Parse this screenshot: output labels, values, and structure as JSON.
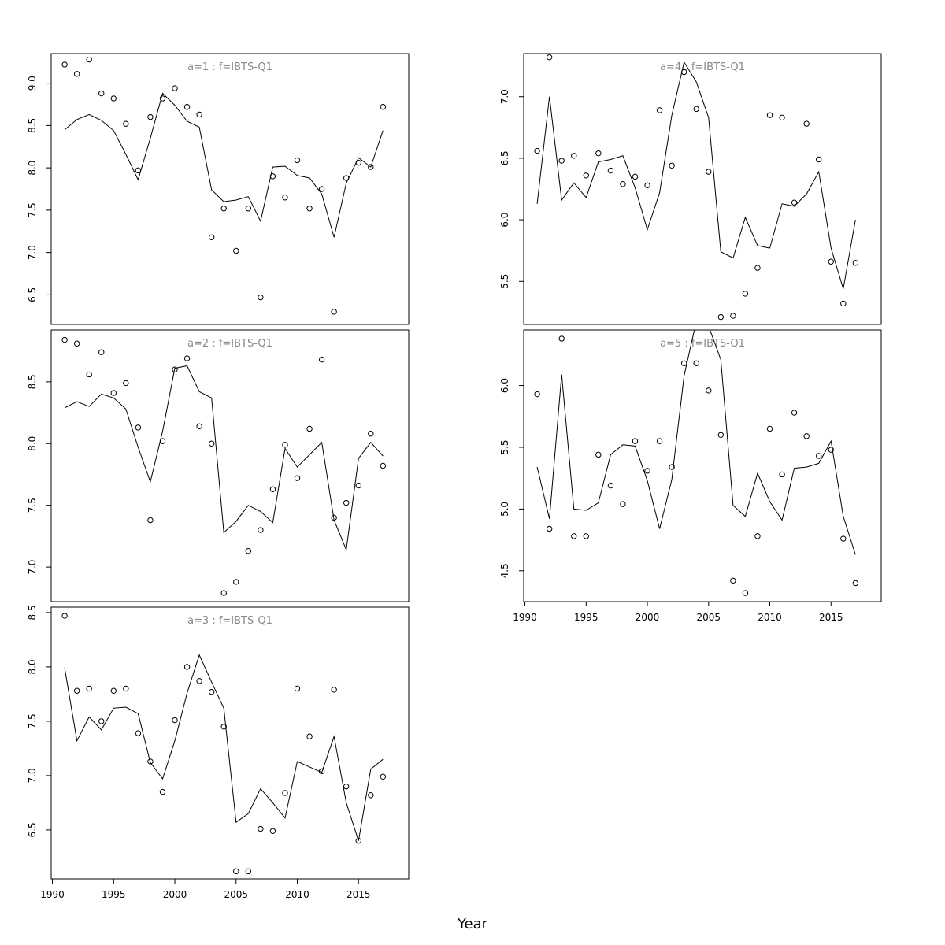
{
  "chart_data": {
    "type": "line",
    "xlabel": "Year",
    "x": [
      1991,
      1992,
      1993,
      1994,
      1995,
      1996,
      1997,
      1998,
      1999,
      2000,
      2001,
      2002,
      2003,
      2004,
      2005,
      2006,
      2007,
      2008,
      2009,
      2010,
      2011,
      2012,
      2013,
      2014,
      2015,
      2016,
      2017
    ],
    "xlim": [
      1989.9,
      2019.1
    ],
    "xticks": [
      1990,
      1995,
      2000,
      2005,
      2010,
      2015
    ],
    "panels": [
      {
        "title": "a=1  :  f=IBTS-Q1",
        "ylim": [
          6.15,
          9.35
        ],
        "yticks": [
          "6.5",
          "7.0",
          "7.5",
          "8.0",
          "8.5",
          "9.0"
        ],
        "observed": [
          9.22,
          9.11,
          9.28,
          8.88,
          8.82,
          8.52,
          7.97,
          8.6,
          8.82,
          8.94,
          8.72,
          8.63,
          7.18,
          7.52,
          7.02,
          7.52,
          6.47,
          7.9,
          7.65,
          8.09,
          7.52,
          7.75,
          6.3,
          7.88,
          8.06,
          8.01,
          8.72
        ],
        "fitted": [
          8.45,
          8.57,
          8.63,
          8.56,
          8.44,
          8.16,
          7.86,
          8.35,
          8.88,
          8.74,
          8.55,
          8.48,
          7.74,
          7.6,
          7.62,
          7.66,
          7.37,
          8.01,
          8.02,
          7.91,
          7.88,
          7.69,
          7.18,
          7.82,
          8.12,
          8.01,
          8.44
        ]
      },
      {
        "title": "a=2  :  f=IBTS-Q1",
        "ylim": [
          6.72,
          8.92
        ],
        "yticks": [
          "7.0",
          "7.5",
          "8.0",
          "8.5"
        ],
        "observed": [
          8.84,
          8.81,
          8.56,
          8.74,
          8.41,
          8.49,
          8.13,
          7.38,
          8.02,
          8.6,
          8.69,
          8.14,
          8.0,
          6.79,
          6.88,
          7.13,
          7.3,
          7.63,
          7.99,
          7.72,
          8.12,
          8.68,
          7.4,
          7.52,
          7.66,
          8.08,
          7.82
        ],
        "fitted": [
          8.29,
          8.34,
          8.3,
          8.4,
          8.37,
          8.28,
          7.97,
          7.69,
          8.1,
          8.61,
          8.63,
          8.42,
          8.37,
          7.28,
          7.37,
          7.5,
          7.45,
          7.36,
          7.96,
          7.81,
          7.91,
          8.01,
          7.38,
          7.14,
          7.88,
          8.01,
          7.9
        ]
      },
      {
        "title": "a=3  :  f=IBTS-Q1",
        "ylim": [
          6.05,
          8.55
        ],
        "yticks": [
          "6.5",
          "7.0",
          "7.5",
          "8.0",
          "8.5"
        ],
        "observed": [
          8.47,
          7.78,
          7.8,
          7.5,
          7.78,
          7.8,
          7.39,
          7.13,
          6.85,
          7.51,
          8.0,
          7.87,
          7.77,
          7.45,
          6.12,
          6.12,
          6.51,
          6.49,
          6.84,
          7.8,
          7.36,
          7.04,
          7.79,
          6.9,
          6.4,
          6.82,
          6.99
        ],
        "fitted": [
          7.99,
          7.32,
          7.54,
          7.42,
          7.62,
          7.63,
          7.57,
          7.12,
          6.97,
          7.32,
          7.76,
          8.11,
          7.86,
          7.62,
          6.57,
          6.65,
          6.88,
          6.75,
          6.61,
          7.13,
          7.08,
          7.03,
          7.36,
          6.75,
          6.4,
          7.06,
          7.15
        ]
      },
      {
        "title": "a=4  :  f=IBTS-Q1",
        "ylim": [
          5.15,
          7.35
        ],
        "yticks": [
          "5.5",
          "6.0",
          "6.5",
          "7.0"
        ],
        "observed": [
          6.56,
          7.32,
          6.48,
          6.52,
          6.36,
          6.54,
          6.4,
          6.29,
          6.35,
          6.28,
          6.89,
          6.44,
          7.2,
          6.9,
          6.39,
          5.21,
          5.22,
          5.4,
          5.61,
          6.85,
          6.83,
          6.14,
          6.78,
          6.49,
          5.66,
          5.32,
          5.65
        ],
        "fitted": [
          6.13,
          7.0,
          6.16,
          6.3,
          6.18,
          6.47,
          6.49,
          6.52,
          6.26,
          5.92,
          6.22,
          6.85,
          7.28,
          7.12,
          6.83,
          5.74,
          5.69,
          6.02,
          5.79,
          5.77,
          6.13,
          6.11,
          6.21,
          6.39,
          5.77,
          5.44,
          6.0
        ]
      },
      {
        "title": "a=5  :  f=IBTS-Q1",
        "ylim": [
          4.25,
          6.45
        ],
        "yticks": [
          "4.5",
          "5.0",
          "5.5",
          "6.0"
        ],
        "observed": [
          5.93,
          4.84,
          6.38,
          4.78,
          4.78,
          5.44,
          5.19,
          5.04,
          5.55,
          5.31,
          5.55,
          5.34,
          6.18,
          6.18,
          5.96,
          5.6,
          4.42,
          4.32,
          4.78,
          5.65,
          5.28,
          5.78,
          5.59,
          5.43,
          5.48,
          4.76,
          4.4
        ],
        "fitted": [
          5.34,
          4.92,
          6.09,
          5.0,
          4.99,
          5.05,
          5.44,
          5.52,
          5.51,
          5.23,
          4.84,
          5.24,
          6.08,
          6.52,
          6.48,
          6.21,
          5.03,
          4.94,
          5.29,
          5.06,
          4.91,
          5.33,
          5.34,
          5.37,
          5.55,
          4.94,
          4.63
        ]
      }
    ]
  }
}
